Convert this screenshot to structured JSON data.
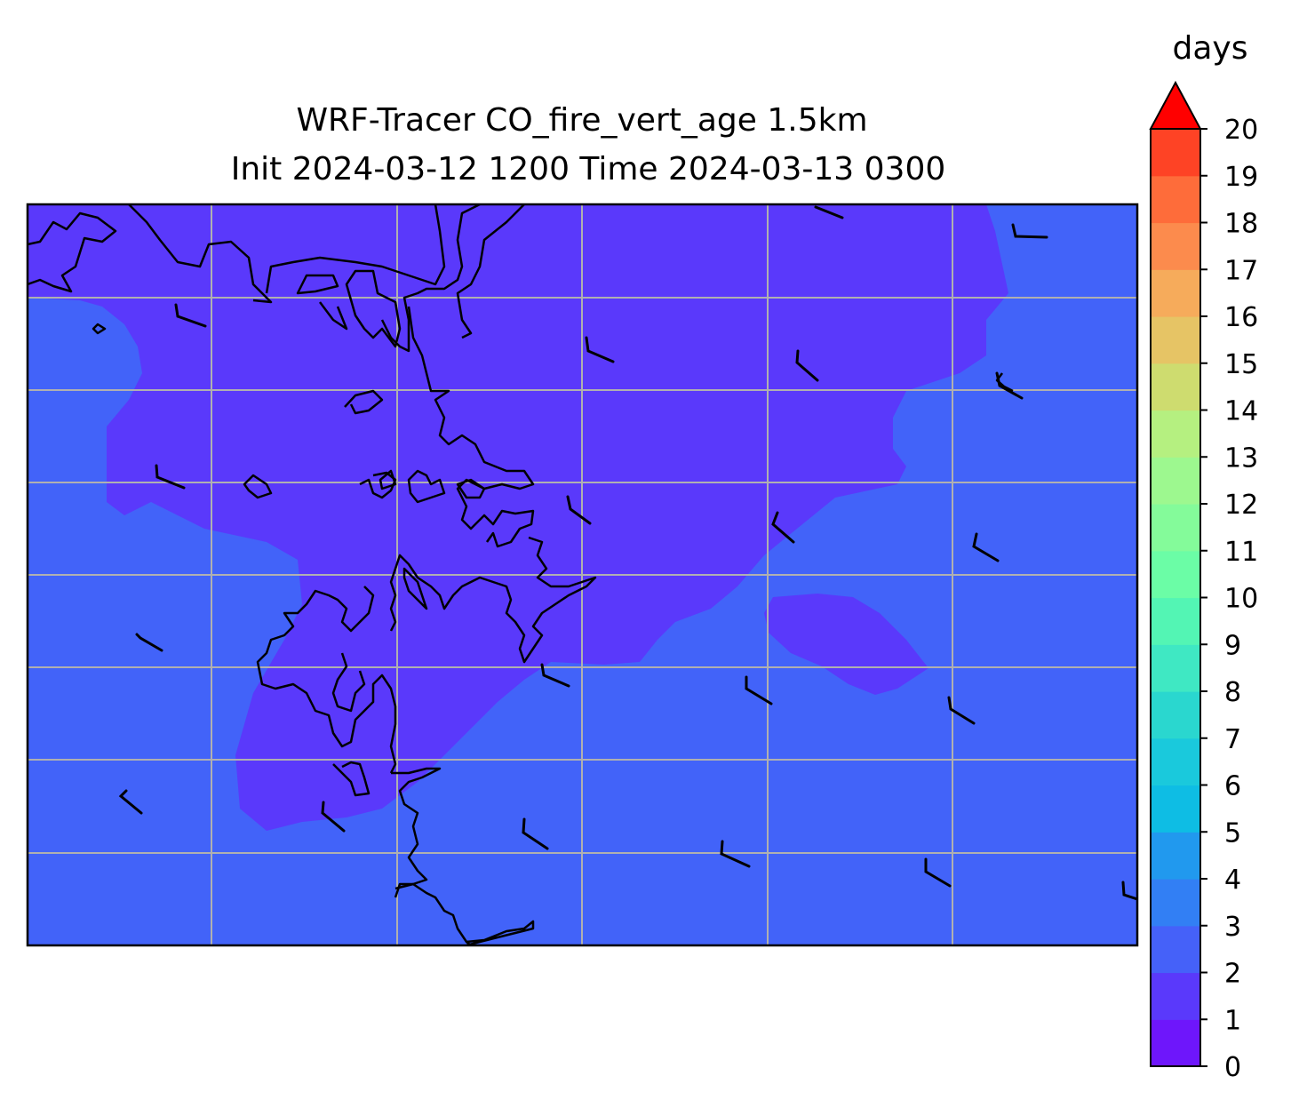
{
  "title": {
    "line1": "WRF-Tracer CO_fire_vert_age 1.5km",
    "line2": "Init 2024-03-12 1200 Time 2024-03-13 0300"
  },
  "colorbar": {
    "label": "days",
    "extend": "max",
    "ticks": [
      "0",
      "1",
      "2",
      "3",
      "4",
      "5",
      "6",
      "7",
      "8",
      "9",
      "10",
      "11",
      "12",
      "13",
      "14",
      "15",
      "16",
      "17",
      "18",
      "19",
      "20"
    ],
    "colors": [
      "#6e16fb",
      "#5a39fb",
      "#4561f9",
      "#327ff4",
      "#2199ee",
      "#0ebde4",
      "#1ac9dc",
      "#2ad7cf",
      "#3fe8c3",
      "#53f5b4",
      "#6bfda6",
      "#84fb9a",
      "#9df88f",
      "#b5f080",
      "#cedc6f",
      "#e6c465",
      "#f6ab5b",
      "#fc8b4d",
      "#fe6c3a",
      "#fe4325",
      "#fe1910"
    ],
    "over_color": "#ff0000"
  },
  "map": {
    "variable": "CO_fire_vert_age",
    "units": "days",
    "gridlines": true,
    "field_colors": {
      "background": "#4263f9",
      "younger_air": "#5a39fb"
    },
    "coastline_color": "#000000",
    "gridline_color": "#b0b0b0",
    "wind_barb_color": "#000000"
  }
}
